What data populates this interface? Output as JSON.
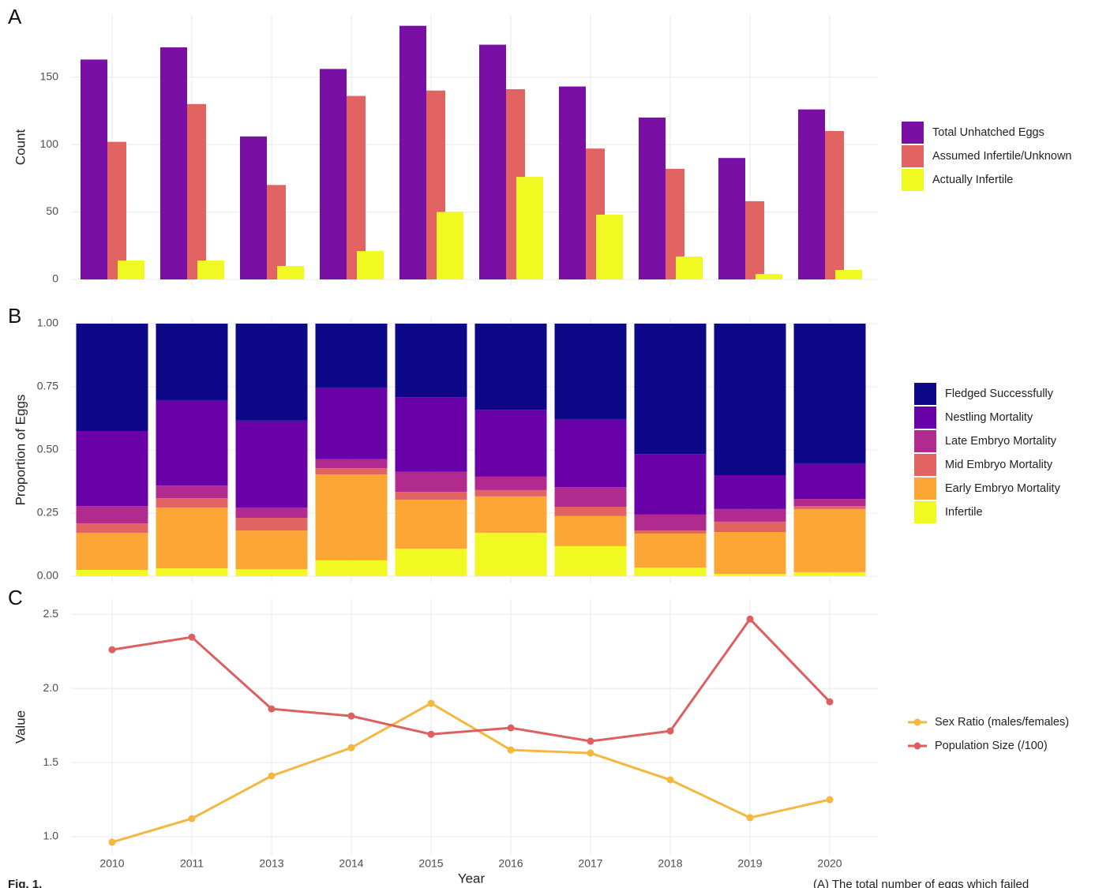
{
  "chart_data": [
    {
      "type": "bar",
      "panel": "A",
      "ylabel": "Count",
      "ylim": [
        0,
        196
      ],
      "yticks": [
        0,
        50,
        100,
        150
      ],
      "grid": true,
      "series": [
        {
          "name": "Total Unhatched Eggs",
          "color": "#7a0fa5",
          "values": [
            163,
            172,
            106,
            156,
            188,
            174,
            143,
            120,
            90,
            126
          ]
        },
        {
          "name": "Assumed Infertile/Unknown",
          "color": "#e16462",
          "values": [
            102,
            130,
            70,
            136,
            140,
            141,
            97,
            82,
            58,
            110
          ]
        },
        {
          "name": "Actually Infertile",
          "color": "#f0f921",
          "values": [
            14,
            14,
            10,
            21,
            50,
            76,
            48,
            17,
            4,
            7
          ]
        }
      ]
    },
    {
      "type": "stacked_bar",
      "panel": "B",
      "ylabel": "Proportion of Eggs",
      "ylim": [
        0,
        1
      ],
      "yticks": [
        {
          "value": 0,
          "label": "0.00"
        },
        {
          "value": 0.25,
          "label": "0.25"
        },
        {
          "value": 0.5,
          "label": "0.50"
        },
        {
          "value": 0.75,
          "label": "0.75"
        },
        {
          "value": 1,
          "label": "1.00"
        }
      ],
      "grid": true,
      "series": [
        {
          "name": "Infertile",
          "color": "#f0f921",
          "values": [
            0.025,
            0.031,
            0.028,
            0.063,
            0.109,
            0.172,
            0.119,
            0.034,
            0.009,
            0.016
          ]
        },
        {
          "name": "Early Embryo Mortality",
          "color": "#fca636",
          "values": [
            0.147,
            0.241,
            0.153,
            0.34,
            0.194,
            0.144,
            0.119,
            0.135,
            0.166,
            0.25
          ]
        },
        {
          "name": "Mid Embryo Mortality",
          "color": "#e16462",
          "values": [
            0.037,
            0.037,
            0.05,
            0.025,
            0.031,
            0.025,
            0.037,
            0.012,
            0.041,
            0.012
          ]
        },
        {
          "name": "Late Embryo Mortality",
          "color": "#b12a90",
          "values": [
            0.069,
            0.05,
            0.041,
            0.035,
            0.079,
            0.053,
            0.078,
            0.063,
            0.05,
            0.028
          ]
        },
        {
          "name": "Nestling Mortality",
          "color": "#6a00a8",
          "values": [
            0.297,
            0.338,
            0.344,
            0.284,
            0.296,
            0.265,
            0.269,
            0.24,
            0.134,
            0.141
          ]
        },
        {
          "name": "Fledged Successfully",
          "color": "#0d0887",
          "values": [
            0.425,
            0.303,
            0.384,
            0.253,
            0.291,
            0.341,
            0.378,
            0.516,
            0.6,
            0.553
          ]
        }
      ]
    },
    {
      "type": "line",
      "panel": "C",
      "ylabel": "Value",
      "xlabel": "Year",
      "categories": [
        "2010",
        "2011",
        "2013",
        "2014",
        "2015",
        "2016",
        "2017",
        "2018",
        "2019",
        "2020"
      ],
      "ylim": [
        0.92,
        2.56
      ],
      "yticks": [
        {
          "value": 1,
          "label": "1.0"
        },
        {
          "value": 1.5,
          "label": "1.5"
        },
        {
          "value": 2,
          "label": "2.0"
        },
        {
          "value": 2.5,
          "label": "2.5"
        }
      ],
      "grid": true,
      "series": [
        {
          "name": "Sex Ratio (males/females)",
          "color": "#f4b73f",
          "values": [
            0.963,
            1.122,
            1.41,
            1.6,
            1.9,
            1.585,
            1.564,
            1.383,
            1.128,
            1.25
          ]
        },
        {
          "name": "Population Size (/100)",
          "color": "#de5f5f",
          "values": [
            2.261,
            2.346,
            1.862,
            1.814,
            1.691,
            1.734,
            1.644,
            1.713,
            2.468,
            1.91
          ]
        }
      ]
    }
  ],
  "caption": {
    "figure": "Fig. 1.",
    "text": "(A) The total number of eggs which failed"
  }
}
